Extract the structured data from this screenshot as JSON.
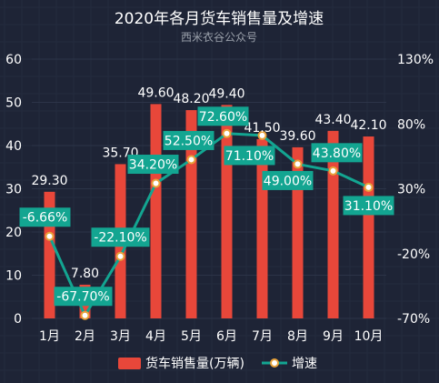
{
  "chart_data": {
    "type": "bar",
    "title": "2020年各月货车销售量及增速",
    "subtitle": "西米衣谷公众号",
    "categories": [
      "1月",
      "2月",
      "3月",
      "4月",
      "5月",
      "6月",
      "7月",
      "8月",
      "9月",
      "10月"
    ],
    "series": [
      {
        "name": "货车销售量(万辆)",
        "type": "bar",
        "axis": "left",
        "color": "#e8473a",
        "values": [
          29.3,
          7.8,
          35.7,
          49.6,
          48.2,
          49.4,
          41.5,
          39.6,
          43.4,
          42.1
        ],
        "labels": [
          "29.30",
          "7.80",
          "35.70",
          "49.60",
          "48.20",
          "49.40",
          "41.50",
          "39.60",
          "43.40",
          "42.10"
        ]
      },
      {
        "name": "增速",
        "type": "line",
        "axis": "right",
        "color": "#13a591",
        "unit": "%",
        "values": [
          -6.66,
          -67.7,
          -22.1,
          34.2,
          52.5,
          72.6,
          71.1,
          49.0,
          43.8,
          31.1
        ],
        "labels": [
          "-6.66%",
          "-67.70%",
          "-22.10%",
          "34.20%",
          "52.50%",
          "72.60%",
          "71.10%",
          "49.00%",
          "43.80%",
          "31.10%"
        ]
      }
    ],
    "y_left": {
      "min": 0,
      "max": 60,
      "ticks": [
        "0",
        "10",
        "20",
        "30",
        "40",
        "50",
        "60"
      ]
    },
    "y_right": {
      "min": -70,
      "max": 130,
      "ticks": [
        "-70%",
        "-20%",
        "30%",
        "80%",
        "130%"
      ]
    },
    "grid": true,
    "legend_position": "bottom",
    "colors": {
      "background": "#1e2436",
      "grid": "#2c3448",
      "text": "#ffffff",
      "subtitle_text": "#9aa0aa"
    }
  }
}
